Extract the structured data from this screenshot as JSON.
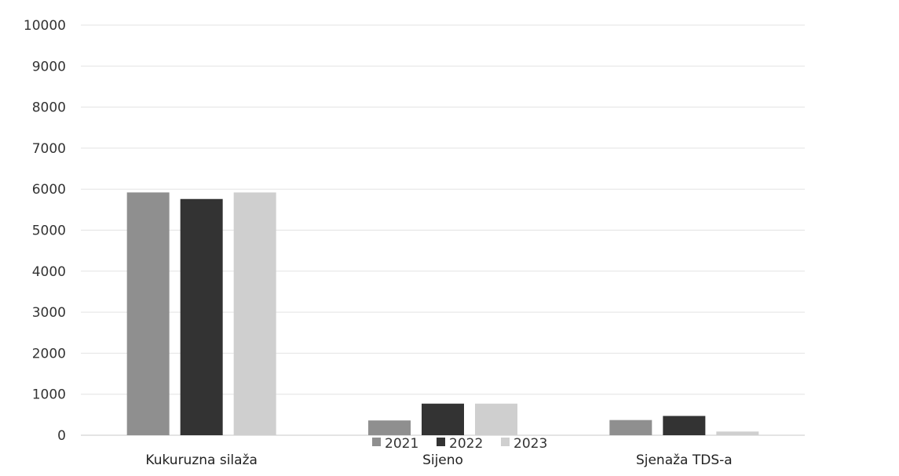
{
  "chart_data": {
    "type": "bar",
    "categories": [
      "Kukuruzna silaža",
      "Sijeno",
      "Sjenaža TDS-a"
    ],
    "series": [
      {
        "name": "2021",
        "values": [
          5920,
          360,
          370
        ],
        "color": "#8f8f8f"
      },
      {
        "name": "2022",
        "values": [
          5760,
          770,
          470
        ],
        "color": "#333333"
      },
      {
        "name": "2023",
        "values": [
          5920,
          770,
          90
        ],
        "color": "#cfcfcf"
      }
    ],
    "y_ticks": [
      "0",
      "1000",
      "2000",
      "3000",
      "4000",
      "5000",
      "6000",
      "7000",
      "8000",
      "9000",
      "10000"
    ],
    "ylim": [
      0,
      10000
    ],
    "grid": true,
    "legend_position": "bottom"
  }
}
